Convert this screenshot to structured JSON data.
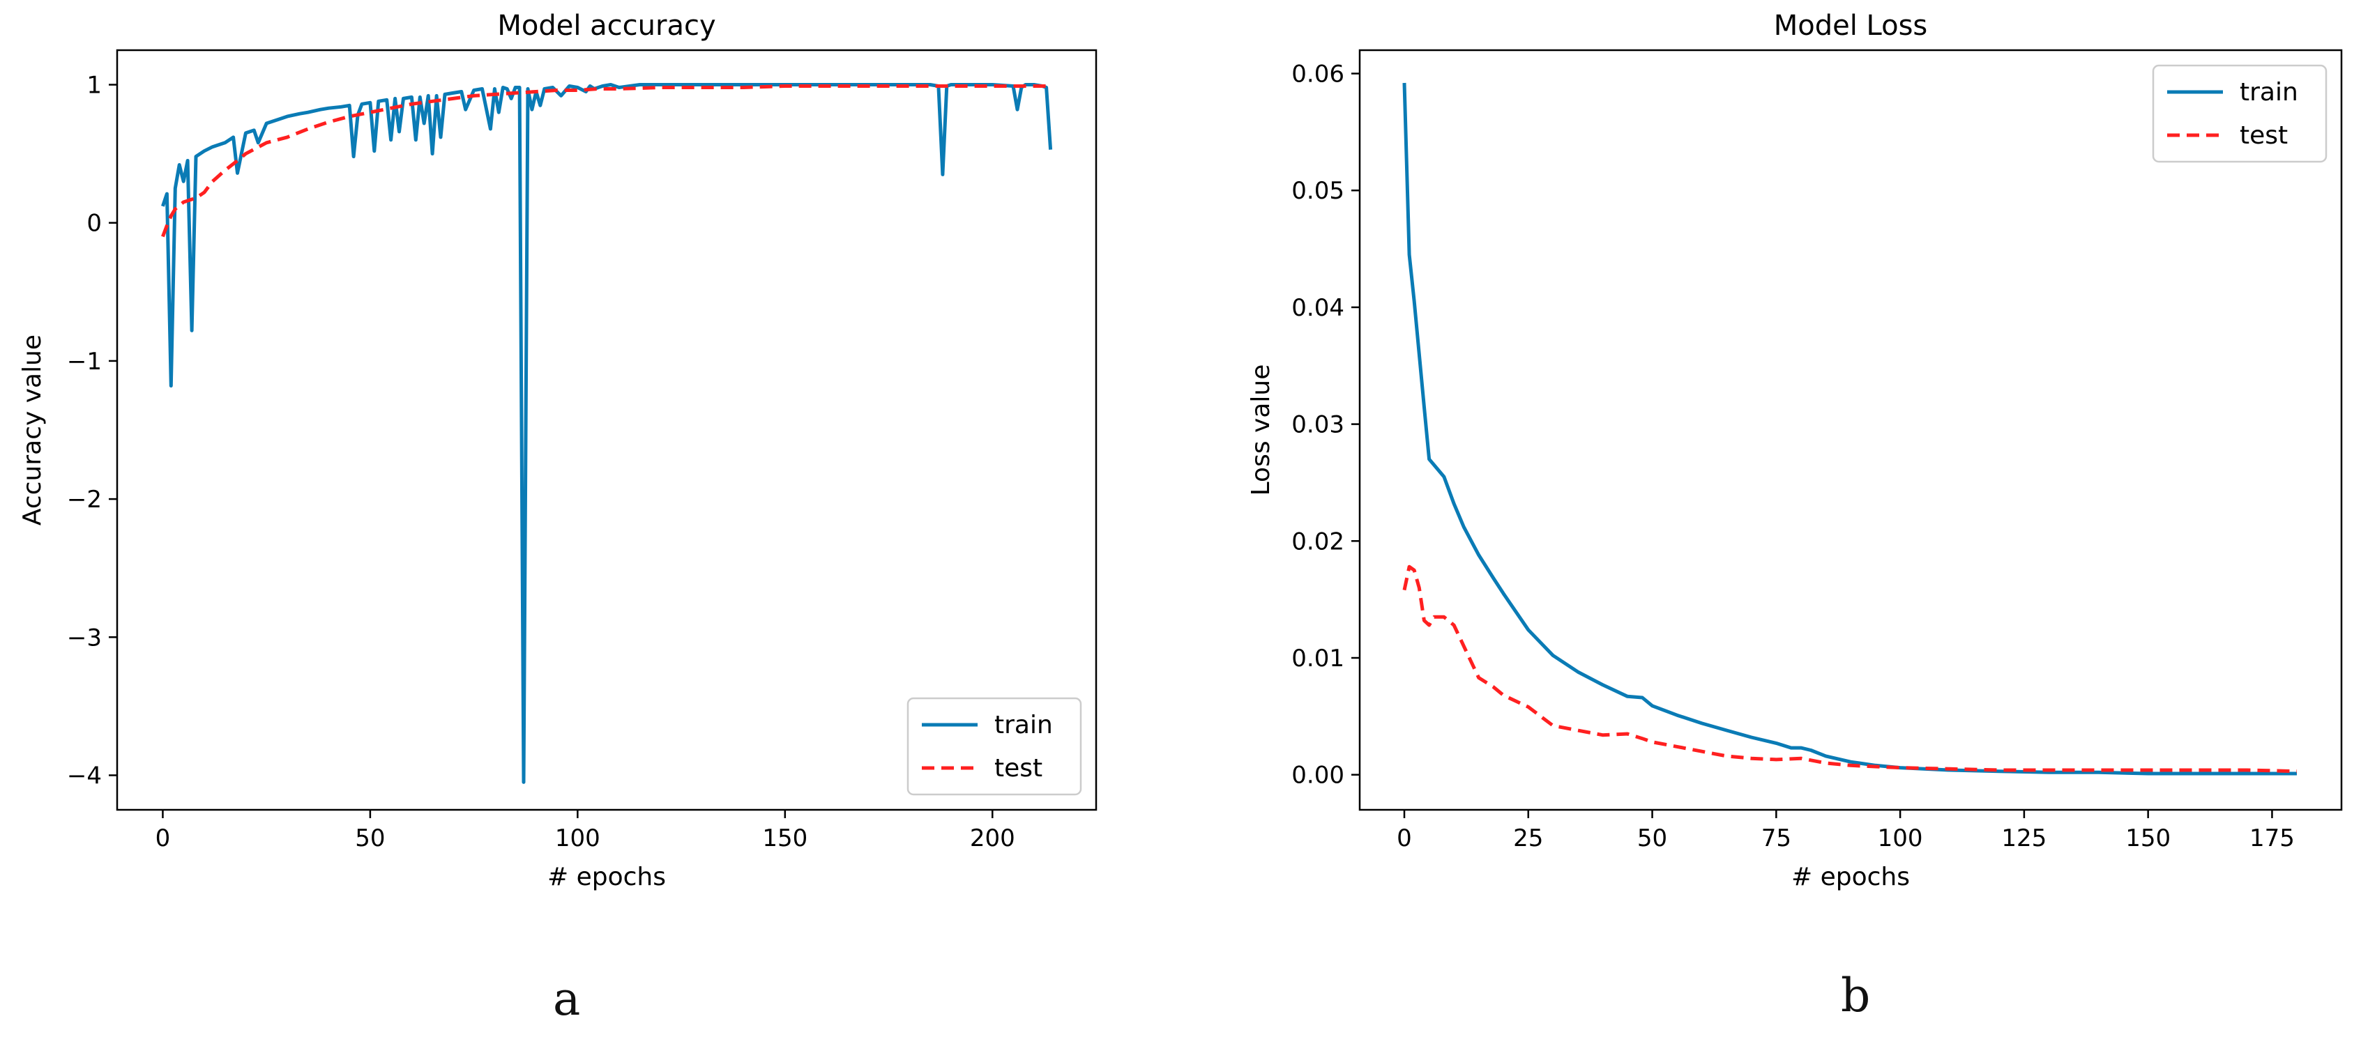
{
  "panel_labels": [
    "a",
    "b"
  ],
  "colors": {
    "train": "#0a7bb5",
    "test": "#ff2020",
    "axis": "#000000"
  },
  "chart_data": [
    {
      "type": "line",
      "title": "Model accuracy",
      "xlabel": "# epochs",
      "ylabel": "Accuracy value",
      "xlim": [
        -11,
        225
      ],
      "ylim": [
        -4.25,
        1.25
      ],
      "xticks": [
        0,
        50,
        100,
        150,
        200
      ],
      "xtick_labels": [
        "0",
        "50",
        "100",
        "150",
        "200"
      ],
      "yticks": [
        -4,
        -3,
        -2,
        -1,
        0,
        1
      ],
      "ytick_labels": [
        "−4",
        "−3",
        "−2",
        "−1",
        "0",
        "1"
      ],
      "legend_position": "lower right",
      "series": [
        {
          "name": "train",
          "style": "solid",
          "x": [
            0,
            1,
            2,
            3,
            4,
            5,
            6,
            7,
            8,
            10,
            12,
            15,
            17,
            18,
            20,
            22,
            23,
            25,
            28,
            30,
            33,
            35,
            38,
            40,
            43,
            45,
            46,
            47,
            48,
            50,
            51,
            52,
            54,
            55,
            56,
            57,
            58,
            60,
            61,
            62,
            63,
            64,
            65,
            66,
            67,
            68,
            70,
            72,
            73,
            75,
            77,
            79,
            80,
            81,
            82,
            83,
            84,
            85,
            86,
            87,
            88,
            89,
            90,
            91,
            92,
            94,
            96,
            98,
            100,
            102,
            103,
            104,
            106,
            108,
            110,
            115,
            120,
            130,
            140,
            150,
            160,
            170,
            180,
            185,
            187,
            188,
            189,
            190,
            195,
            200,
            205,
            206,
            207,
            208,
            210,
            212,
            213,
            214
          ],
          "y": [
            0.12,
            0.21,
            -1.18,
            0.25,
            0.42,
            0.3,
            0.45,
            -0.78,
            0.48,
            0.52,
            0.55,
            0.58,
            0.62,
            0.36,
            0.65,
            0.67,
            0.58,
            0.72,
            0.75,
            0.77,
            0.79,
            0.8,
            0.82,
            0.83,
            0.84,
            0.85,
            0.48,
            0.78,
            0.86,
            0.87,
            0.52,
            0.88,
            0.89,
            0.6,
            0.9,
            0.66,
            0.9,
            0.91,
            0.6,
            0.91,
            0.72,
            0.92,
            0.5,
            0.92,
            0.62,
            0.93,
            0.94,
            0.95,
            0.82,
            0.96,
            0.97,
            0.68,
            0.97,
            0.8,
            0.98,
            0.97,
            0.9,
            0.98,
            0.98,
            -4.05,
            0.97,
            0.82,
            0.95,
            0.85,
            0.97,
            0.98,
            0.92,
            0.99,
            0.98,
            0.95,
            0.99,
            0.97,
            0.99,
            1.0,
            0.98,
            1.0,
            1.0,
            1.0,
            1.0,
            1.0,
            1.0,
            1.0,
            1.0,
            1.0,
            0.99,
            0.35,
            0.99,
            1.0,
            1.0,
            1.0,
            0.99,
            0.82,
            0.98,
            1.0,
            1.0,
            0.99,
            0.98,
            0.53
          ]
        },
        {
          "name": "test",
          "style": "dashed",
          "x": [
            0,
            1,
            2,
            3,
            5,
            8,
            10,
            12,
            15,
            18,
            20,
            25,
            30,
            35,
            40,
            45,
            50,
            55,
            60,
            65,
            70,
            75,
            80,
            85,
            90,
            95,
            100,
            105,
            110,
            120,
            130,
            140,
            150,
            160,
            170,
            180,
            190,
            200,
            205,
            210,
            214
          ],
          "y": [
            -0.1,
            -0.02,
            0.05,
            0.1,
            0.15,
            0.18,
            0.22,
            0.3,
            0.38,
            0.45,
            0.5,
            0.58,
            0.62,
            0.68,
            0.73,
            0.77,
            0.8,
            0.83,
            0.86,
            0.88,
            0.9,
            0.92,
            0.93,
            0.94,
            0.95,
            0.96,
            0.96,
            0.97,
            0.97,
            0.98,
            0.98,
            0.98,
            0.99,
            0.99,
            0.99,
            0.99,
            0.99,
            0.99,
            0.99,
            0.99,
            0.99
          ]
        }
      ]
    },
    {
      "type": "line",
      "title": "Model Loss",
      "xlabel": "# epochs",
      "ylabel": "Loss value",
      "xlim": [
        -9,
        189
      ],
      "ylim": [
        -0.003,
        0.062
      ],
      "xticks": [
        0,
        25,
        50,
        75,
        100,
        125,
        150,
        175
      ],
      "xtick_labels": [
        "0",
        "25",
        "50",
        "75",
        "100",
        "125",
        "150",
        "175"
      ],
      "yticks": [
        0.0,
        0.01,
        0.02,
        0.03,
        0.04,
        0.05,
        0.06
      ],
      "ytick_labels": [
        "0.00",
        "0.01",
        "0.02",
        "0.03",
        "0.04",
        "0.05",
        "0.06"
      ],
      "legend_position": "upper right",
      "series": [
        {
          "name": "train",
          "style": "solid",
          "x": [
            0,
            1,
            2,
            3,
            4,
            5,
            6,
            8,
            10,
            12,
            15,
            18,
            20,
            25,
            30,
            35,
            40,
            45,
            48,
            50,
            55,
            60,
            65,
            70,
            75,
            78,
            80,
            82,
            85,
            90,
            95,
            100,
            110,
            120,
            130,
            140,
            150,
            160,
            170,
            180
          ],
          "y": [
            0.0592,
            0.0445,
            0.0405,
            0.036,
            0.0315,
            0.027,
            0.0265,
            0.0255,
            0.0232,
            0.0212,
            0.0188,
            0.0168,
            0.0155,
            0.0124,
            0.0102,
            0.0088,
            0.0077,
            0.0067,
            0.0066,
            0.0059,
            0.0051,
            0.0044,
            0.0038,
            0.0032,
            0.0027,
            0.0023,
            0.0023,
            0.0021,
            0.0016,
            0.0011,
            0.0008,
            0.0006,
            0.0004,
            0.0003,
            0.0002,
            0.0002,
            0.0001,
            0.0001,
            0.0001,
            0.0001
          ]
        },
        {
          "name": "test",
          "style": "dashed",
          "x": [
            0,
            1,
            2,
            3,
            4,
            5,
            6,
            8,
            10,
            12,
            15,
            18,
            20,
            25,
            30,
            35,
            40,
            45,
            48,
            50,
            55,
            60,
            65,
            70,
            75,
            80,
            85,
            90,
            95,
            100,
            110,
            120,
            130,
            140,
            150,
            160,
            170,
            180
          ],
          "y": [
            0.0158,
            0.0178,
            0.0175,
            0.016,
            0.0132,
            0.0128,
            0.0135,
            0.0135,
            0.0128,
            0.011,
            0.0083,
            0.0075,
            0.0068,
            0.0058,
            0.0042,
            0.0038,
            0.0034,
            0.0035,
            0.0031,
            0.0028,
            0.0024,
            0.002,
            0.0016,
            0.0014,
            0.0013,
            0.0014,
            0.001,
            0.0008,
            0.0007,
            0.0006,
            0.0005,
            0.0004,
            0.0004,
            0.0004,
            0.0004,
            0.0004,
            0.0004,
            0.0003
          ]
        }
      ]
    }
  ]
}
